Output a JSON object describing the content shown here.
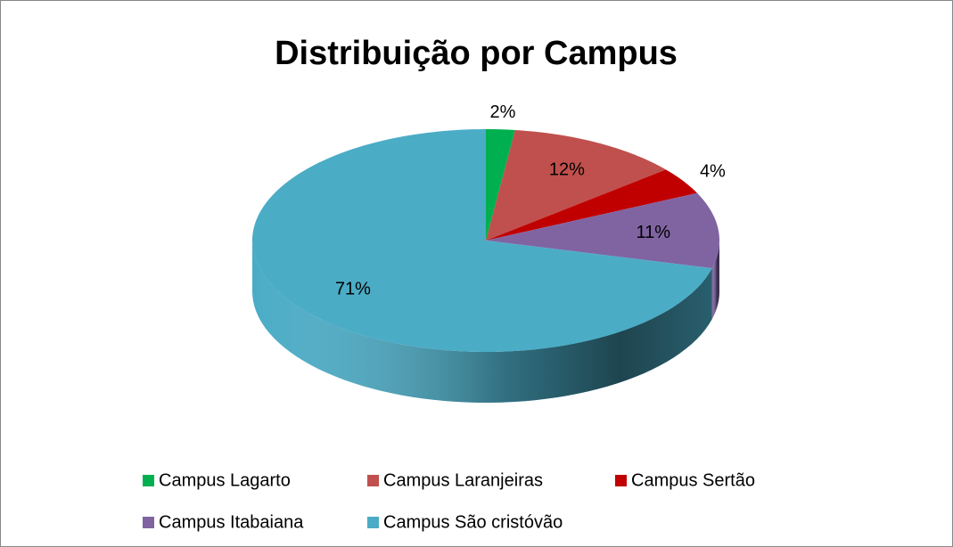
{
  "chart_data": {
    "type": "pie",
    "title": "Distribuição por Campus",
    "categories": [
      "Campus Lagarto",
      "Campus Laranjeiras",
      "Campus Sertão",
      "Campus Itabaiana",
      "Campus São cristóvão"
    ],
    "values": [
      2,
      12,
      4,
      11,
      71
    ],
    "value_labels": [
      "2%",
      "12%",
      "4%",
      "11%",
      "71%"
    ],
    "colors": [
      "#00b050",
      "#c0504d",
      "#c00000",
      "#8064a2",
      "#4bacc6"
    ],
    "legend": "bottom"
  }
}
